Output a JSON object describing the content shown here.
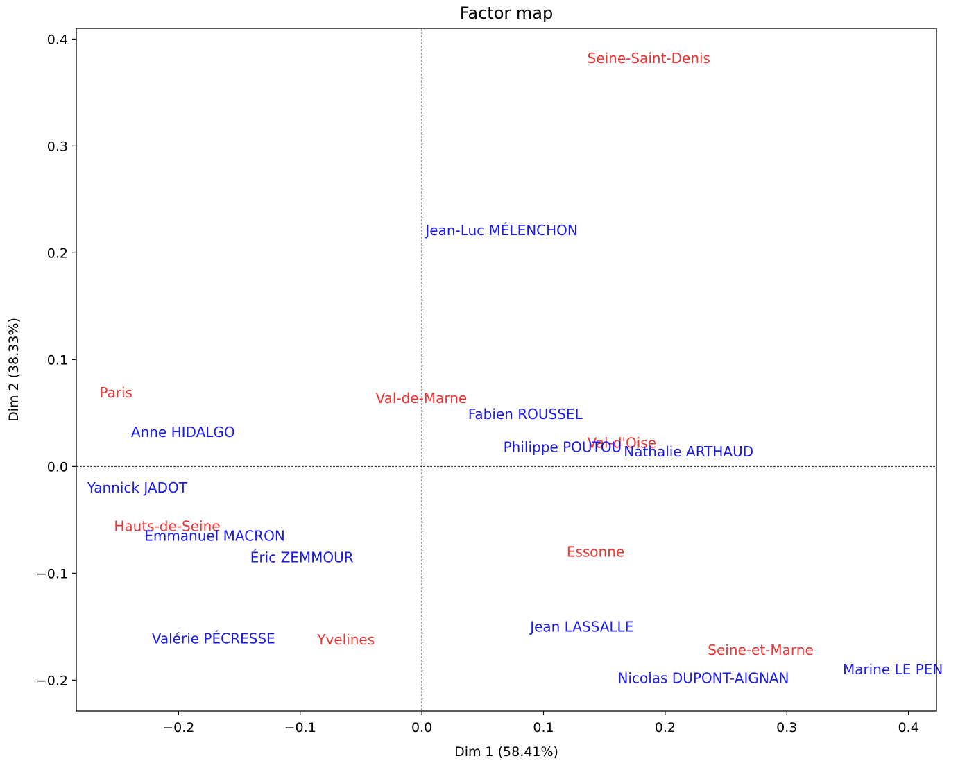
{
  "colors": {
    "rows": "#ee3333",
    "columns": "#1a1aee",
    "axes": "#000000"
  },
  "chart_data": {
    "type": "scatter",
    "title": "Factor map",
    "xlabel": "Dim 1 (58.41%)",
    "ylabel": "Dim 2 (38.33%)",
    "xlim": [
      -0.284,
      0.423
    ],
    "ylim": [
      -0.229,
      0.41
    ],
    "xticks": [
      {
        "value": -0.2,
        "label": "−0.2"
      },
      {
        "value": -0.1,
        "label": "−0.1"
      },
      {
        "value": 0.0,
        "label": "0.0"
      },
      {
        "value": 0.1,
        "label": "0.1"
      },
      {
        "value": 0.2,
        "label": "0.2"
      },
      {
        "value": 0.3,
        "label": "0.3"
      },
      {
        "value": 0.4,
        "label": "0.4"
      }
    ],
    "yticks": [
      {
        "value": -0.2,
        "label": "−0.2"
      },
      {
        "value": -0.1,
        "label": "−0.1"
      },
      {
        "value": 0.0,
        "label": "0.0"
      },
      {
        "value": 0.1,
        "label": "0.1"
      },
      {
        "value": 0.2,
        "label": "0.2"
      },
      {
        "value": 0.3,
        "label": "0.3"
      },
      {
        "value": 0.4,
        "label": "0.4"
      }
    ],
    "grid": false,
    "origin_lines": true,
    "series": [
      {
        "group": "rows",
        "points": [
          {
            "label": "Seine-Saint-Denis",
            "x": 0.136,
            "y": 0.382
          },
          {
            "label": "Paris",
            "x": -0.265,
            "y": 0.069
          },
          {
            "label": "Val-de-Marne",
            "x": -0.038,
            "y": 0.064
          },
          {
            "label": "Val-d'Oise",
            "x": 0.136,
            "y": 0.022
          },
          {
            "label": "Hauts-de-Seine",
            "x": -0.253,
            "y": -0.056
          },
          {
            "label": "Essonne",
            "x": 0.119,
            "y": -0.08
          },
          {
            "label": "Yvelines",
            "x": -0.086,
            "y": -0.162
          },
          {
            "label": "Seine-et-Marne",
            "x": 0.235,
            "y": -0.172
          }
        ]
      },
      {
        "group": "columns",
        "points": [
          {
            "label": "Jean-Luc MÉLENCHON",
            "x": 0.003,
            "y": 0.221
          },
          {
            "label": "Fabien ROUSSEL",
            "x": 0.038,
            "y": 0.049
          },
          {
            "label": "Anne HIDALGO",
            "x": -0.239,
            "y": 0.032
          },
          {
            "label": "Philippe POUTOU",
            "x": 0.067,
            "y": 0.018
          },
          {
            "label": "Nathalie ARTHAUD",
            "x": 0.166,
            "y": 0.014
          },
          {
            "label": "Yannick JADOT",
            "x": -0.275,
            "y": -0.02
          },
          {
            "label": "Emmanuel MACRON",
            "x": -0.228,
            "y": -0.065
          },
          {
            "label": "Éric ZEMMOUR",
            "x": -0.141,
            "y": -0.085
          },
          {
            "label": "Jean LASSALLE",
            "x": 0.089,
            "y": -0.15
          },
          {
            "label": "Valérie PÉCRESSE",
            "x": -0.222,
            "y": -0.161
          },
          {
            "label": "Nicolas DUPONT-AIGNAN",
            "x": 0.161,
            "y": -0.198
          },
          {
            "label": "Marine LE PEN",
            "x": 0.346,
            "y": -0.19
          }
        ]
      }
    ]
  }
}
